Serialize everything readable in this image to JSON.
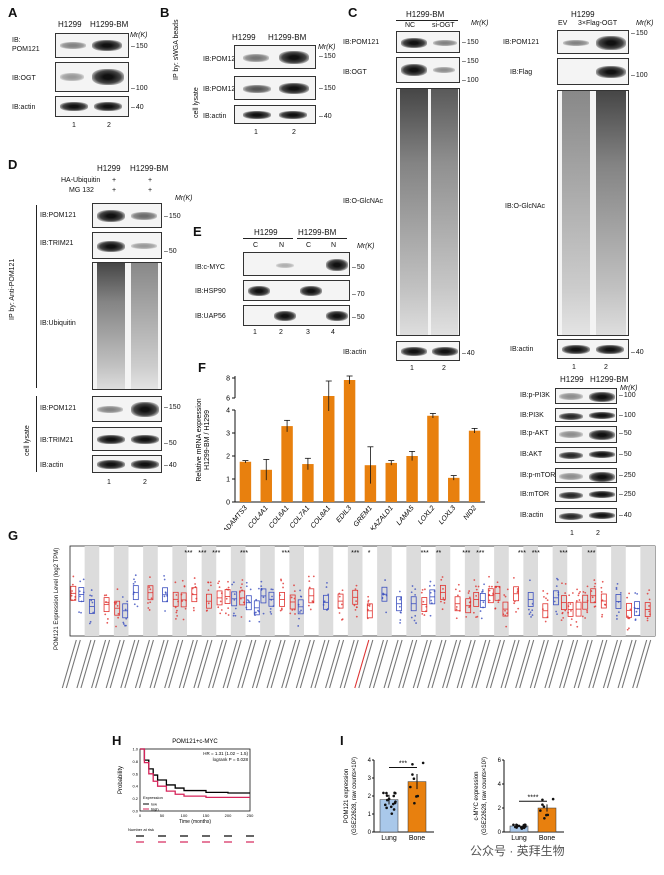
{
  "panels": {
    "A": {
      "label": "A",
      "cols": [
        "H1299",
        "H1299-BM"
      ],
      "rows": [
        "IB:\nPOM121",
        "IB:OGT",
        "IB:actin"
      ],
      "rows_flat": [
        "IB:",
        "POM121",
        "IB:OGT",
        "IB:actin"
      ],
      "mw_header": "Mr(K)",
      "mw": [
        "150",
        "100",
        "40"
      ],
      "lanes": [
        "1",
        "2"
      ]
    },
    "B": {
      "label": "B",
      "side_top": "IP by: sWGA beads",
      "side_bottom": "cell lysate",
      "cols": [
        "H1299",
        "H1299-BM"
      ],
      "rows": [
        "IB:POM121",
        "IB:POM121",
        "IB:actin"
      ],
      "mw_header": "Mr(K)",
      "mw": [
        "150",
        "150",
        "40"
      ],
      "lanes": [
        "1",
        "2"
      ]
    },
    "C": {
      "label": "C",
      "left": {
        "header": "H1299-BM",
        "cols": [
          "NC",
          "si-OGT"
        ],
        "rows": [
          "IB:POM121",
          "IB:OGT",
          "IB:O-GlcNAc",
          "IB:actin"
        ],
        "mw": [
          "150",
          "150",
          "100",
          "40"
        ],
        "lanes": [
          "1",
          "2"
        ]
      },
      "right": {
        "header": "H1299",
        "cols": [
          "EV",
          "3×Flag-OGT"
        ],
        "rows": [
          "IB:POM121",
          "IB:Flag",
          "IB:O-GlcNAc",
          "IB:actin"
        ],
        "mw": [
          "150",
          "100",
          "40"
        ],
        "lanes": [
          "1",
          "2"
        ]
      },
      "mw_header": "Mr(K)"
    },
    "D": {
      "label": "D",
      "cols": [
        "H1299",
        "H1299-BM"
      ],
      "treatments": [
        {
          "name": "HA-Ubiquitin",
          "signs": [
            "+",
            "+"
          ]
        },
        {
          "name": "MG 132",
          "signs": [
            "+",
            "+"
          ]
        }
      ],
      "side_top": "IP by: Anti-POM121",
      "side_bottom": "cell lysate",
      "rows": [
        "IB:POM121",
        "IB:TRIM21",
        "IB:Ubiquitin",
        "IB:POM121",
        "IB:TRIM21",
        "IB:actin"
      ],
      "mw_header": "Mr(K)",
      "mw": [
        "150",
        "50",
        "150",
        "50",
        "40"
      ],
      "lanes": [
        "1",
        "2"
      ]
    },
    "E": {
      "label": "E",
      "groups": [
        "H1299",
        "H1299-BM"
      ],
      "cols": [
        "C",
        "N",
        "C",
        "N"
      ],
      "rows": [
        "IB:c-MYC",
        "IB:HSP90",
        "IB:UAP56"
      ],
      "mw_header": "Mr(K)",
      "mw": [
        "50",
        "70",
        "50"
      ],
      "lanes": [
        "1",
        "2",
        "3",
        "4"
      ]
    },
    "F": {
      "label": "F",
      "right_blot": {
        "cols": [
          "H1299",
          "H1299-BM"
        ],
        "rows": [
          "IB:p-PI3K",
          "IB:PI3K",
          "IB:p-AKT",
          "IB:AKT",
          "IB:p-mTOR",
          "IB:mTOR",
          "IB:actin"
        ],
        "mw_header": "Mr(K)",
        "mw": [
          "100",
          "100",
          "50",
          "50",
          "250",
          "250",
          "40"
        ],
        "lanes": [
          "1",
          "2"
        ]
      }
    },
    "G": {
      "label": "G",
      "ylabel": "POM121 Expression Level (log2 TPM)",
      "stars": [
        "***",
        "***",
        "***",
        "***",
        "***",
        "***",
        "*",
        "***",
        "**",
        "***",
        "***",
        "***",
        "***",
        "***",
        "***"
      ]
    },
    "H": {
      "label": "H",
      "title": "POM121+c-MYC",
      "stats": "HR = 1.31 (1.02 − 1.5)\nlogrank P = 0.028",
      "stats_lines": [
        "HR = 1.31 (1.02 − 1.5)",
        "logrank P = 0.028"
      ],
      "ylabel": "Probability",
      "xlabel": "Time (months)",
      "legend_title": "Expression",
      "legend": [
        "low",
        "high"
      ],
      "risk_label": "Number at risk",
      "xticks": [
        "0",
        "50",
        "100",
        "150",
        "200",
        "250"
      ],
      "yticks": [
        "0.0",
        "0.2",
        "0.4",
        "0.6",
        "0.8",
        "1.0"
      ]
    },
    "I": {
      "label": "I",
      "plot1": {
        "ylabel": "POM121 expression (GSE22628, raw counts×10²)",
        "ylabel_lines": [
          "POM121 expression",
          "(GSE22628, raw counts×10²)"
        ],
        "sig": "***",
        "categories": [
          "Lung",
          "Bone"
        ],
        "yticks": [
          "0",
          "1",
          "2",
          "3",
          "4"
        ]
      },
      "plot2": {
        "ylabel": "c-MYC expression (GSE22628, raw counts×10²)",
        "ylabel_lines": [
          "c-MYC expression",
          "(GSE22628, raw counts×10²)"
        ],
        "sig": "****",
        "categories": [
          "Lung",
          "Bone"
        ],
        "yticks": [
          "0",
          "2",
          "4",
          "6"
        ]
      }
    }
  },
  "chart_data": [
    {
      "type": "bar",
      "panel": "F",
      "ylabel": "Relative mRNA expression H1299-BM / H1299",
      "ylabel_lines": [
        "Relative mRNA expression",
        "H1299-BM / H1299"
      ],
      "categories": [
        "ADAMTS3",
        "COL4A1",
        "COL6A1",
        "COL7A1",
        "COL8A1",
        "EDIL3",
        "GREM1",
        "KAZALD1",
        "LAMA5",
        "LOXL2",
        "LOXL3",
        "NID2"
      ],
      "values": [
        1.75,
        1.4,
        3.3,
        1.65,
        6.2,
        7.8,
        1.6,
        1.7,
        2.0,
        3.75,
        1.05,
        3.1
      ],
      "errors": [
        0.05,
        0.45,
        0.25,
        0.25,
        1.5,
        0.4,
        0.8,
        0.1,
        0.2,
        0.1,
        0.1,
        0.1
      ],
      "yticks": [
        "0",
        "1",
        "2",
        "3",
        "4",
        "6",
        "8"
      ],
      "bar_color": "#e8800e"
    },
    {
      "type": "line",
      "panel": "H",
      "title": "POM121+c-MYC",
      "series": [
        {
          "name": "low",
          "color": "#000000",
          "x": [
            0,
            10,
            20,
            30,
            40,
            60,
            80,
            100,
            150,
            200,
            250
          ],
          "y": [
            1.0,
            0.82,
            0.68,
            0.58,
            0.5,
            0.42,
            0.37,
            0.33,
            0.3,
            0.29,
            0.29
          ]
        },
        {
          "name": "high",
          "color": "#d6245a",
          "x": [
            0,
            10,
            20,
            30,
            40,
            60,
            80,
            100,
            150,
            200,
            250
          ],
          "y": [
            1.0,
            0.78,
            0.6,
            0.48,
            0.4,
            0.32,
            0.27,
            0.24,
            0.22,
            0.22,
            0.22
          ]
        }
      ],
      "xlim": [
        0,
        250
      ],
      "ylim": [
        0,
        1
      ]
    },
    {
      "type": "bar",
      "panel": "I-1",
      "categories": [
        "Lung",
        "Bone"
      ],
      "values": [
        1.8,
        2.8
      ],
      "colors": [
        "#a9c8ea",
        "#e8800e"
      ],
      "ylim": [
        0,
        4
      ]
    },
    {
      "type": "bar",
      "panel": "I-2",
      "categories": [
        "Lung",
        "Bone"
      ],
      "values": [
        0.5,
        2.0
      ],
      "colors": [
        "#a9c8ea",
        "#e8800e"
      ],
      "ylim": [
        0,
        6
      ]
    }
  ],
  "watermark": "公众号 · 英拜生物"
}
